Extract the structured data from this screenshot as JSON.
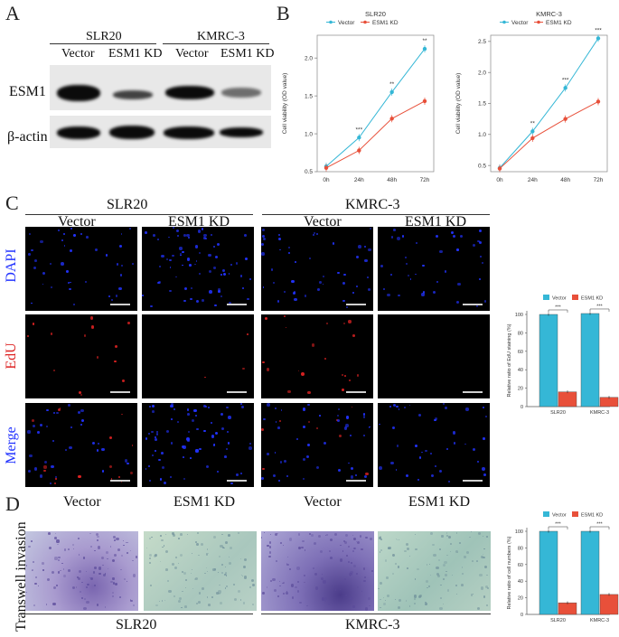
{
  "panels": {
    "A": "A",
    "B": "B",
    "C": "C",
    "D": "D"
  },
  "westernBlot": {
    "cellLines": [
      "SLR20",
      "KMRC-3"
    ],
    "conditions": [
      "Vector",
      "ESM1 KD",
      "Vector",
      "ESM1 KD"
    ],
    "proteins": [
      "ESM1",
      "β-actin"
    ]
  },
  "colors": {
    "vector": "#35b7d6",
    "esm1kd": "#e8503a",
    "dapi": "#2233ff",
    "edu": "#dd2222",
    "merge": "#2233ff"
  },
  "viability": {
    "ylabel": "Cell viability (OD value)",
    "legend": [
      "Vector",
      "ESM1 KD"
    ]
  },
  "micro": {
    "cellLines": [
      "SLR20",
      "KMRC-3"
    ],
    "conditions": [
      "Vector",
      "ESM1 KD",
      "Vector",
      "ESM1 KD"
    ],
    "rows": [
      "DAPI",
      "EdU",
      "Merge"
    ]
  },
  "transwell": {
    "label": "Transwell invasion",
    "conditions": [
      "Vector",
      "ESM1 KD",
      "Vector",
      "ESM1 KD"
    ],
    "cellLines": [
      "SLR20",
      "KMRC-3"
    ]
  },
  "chart_data": [
    {
      "type": "line",
      "title": "SLR20",
      "xlabel": "",
      "ylabel": "Cell viability (OD value)",
      "x": [
        "0h",
        "24h",
        "48h",
        "72h"
      ],
      "ylim": [
        0.5,
        2.3
      ],
      "yticks": [
        "0.5",
        "1.0",
        "1.5",
        "2.0"
      ],
      "series": [
        {
          "name": "Vector",
          "values": [
            0.57,
            0.95,
            1.55,
            2.12
          ]
        },
        {
          "name": "ESM1 KD",
          "values": [
            0.55,
            0.78,
            1.2,
            1.43
          ]
        }
      ],
      "annotations": [
        "***",
        "**",
        "**"
      ]
    },
    {
      "type": "line",
      "title": "KMRC-3",
      "xlabel": "",
      "ylabel": "Cell viability (OD value)",
      "x": [
        "0h",
        "24h",
        "48h",
        "72h"
      ],
      "ylim": [
        0.4,
        2.6
      ],
      "yticks": [
        "0.5",
        "1.0",
        "1.5",
        "2.0",
        "2.5"
      ],
      "series": [
        {
          "name": "Vector",
          "values": [
            0.46,
            1.05,
            1.75,
            2.55
          ]
        },
        {
          "name": "ESM1 KD",
          "values": [
            0.45,
            0.94,
            1.25,
            1.53
          ]
        }
      ],
      "annotations": [
        "**",
        "***",
        "***"
      ]
    },
    {
      "type": "bar",
      "title": "",
      "xlabel": "",
      "ylabel": "Relative ratio of EdU staining (%)",
      "categories": [
        "SLR20",
        "KMRC-3"
      ],
      "ylim": [
        0,
        100
      ],
      "yticks": [
        "0",
        "20",
        "40",
        "60",
        "80",
        "100"
      ],
      "series": [
        {
          "name": "Vector",
          "values": [
            100,
            101
          ]
        },
        {
          "name": "ESM1 KD",
          "values": [
            16,
            10
          ]
        }
      ],
      "annotations": [
        "***",
        "***"
      ]
    },
    {
      "type": "bar",
      "title": "",
      "xlabel": "",
      "ylabel": "Relative ratio of cell numbers (%)",
      "categories": [
        "SLR20",
        "KMRC-3"
      ],
      "ylim": [
        0,
        100
      ],
      "yticks": [
        "0",
        "20",
        "40",
        "60",
        "80",
        "100"
      ],
      "series": [
        {
          "name": "Vector",
          "values": [
            100,
            100
          ]
        },
        {
          "name": "ESM1 KD",
          "values": [
            14,
            24
          ]
        }
      ],
      "annotations": [
        "***",
        "***"
      ]
    }
  ]
}
